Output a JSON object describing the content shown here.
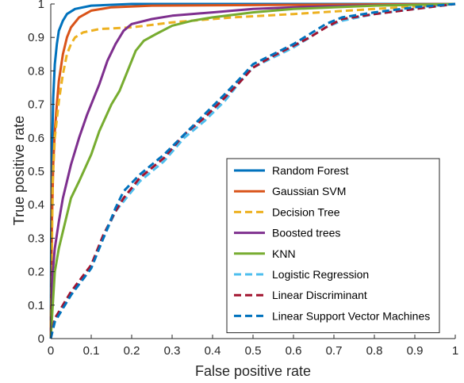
{
  "chart_data": {
    "type": "line",
    "title": "",
    "xlabel": "False positive rate",
    "ylabel": "True positive rate",
    "xlim": [
      0,
      1
    ],
    "ylim": [
      0,
      1
    ],
    "x_ticks": [
      "0",
      "0.1",
      "0.2",
      "0.3",
      "0.4",
      "0.5",
      "0.6",
      "0.7",
      "0.8",
      "0.9",
      "1"
    ],
    "y_ticks": [
      "0",
      "0.1",
      "0.2",
      "0.3",
      "0.4",
      "0.5",
      "0.6",
      "0.7",
      "0.8",
      "0.9",
      "1"
    ],
    "grid": false,
    "legend_position": "bottom-right",
    "series": [
      {
        "name": "Random Forest",
        "color": "#0072BD",
        "style": "solid",
        "points": [
          [
            0,
            0
          ],
          [
            0.001,
            0.3
          ],
          [
            0.003,
            0.55
          ],
          [
            0.006,
            0.72
          ],
          [
            0.01,
            0.82
          ],
          [
            0.015,
            0.88
          ],
          [
            0.02,
            0.92
          ],
          [
            0.03,
            0.95
          ],
          [
            0.04,
            0.97
          ],
          [
            0.06,
            0.985
          ],
          [
            0.1,
            0.995
          ],
          [
            0.2,
            1
          ],
          [
            1,
            1
          ]
        ]
      },
      {
        "name": "Gaussian SVM",
        "color": "#D95319",
        "style": "solid",
        "points": [
          [
            0,
            0
          ],
          [
            0.003,
            0.35
          ],
          [
            0.006,
            0.52
          ],
          [
            0.01,
            0.62
          ],
          [
            0.015,
            0.7
          ],
          [
            0.02,
            0.77
          ],
          [
            0.03,
            0.85
          ],
          [
            0.04,
            0.9
          ],
          [
            0.05,
            0.93
          ],
          [
            0.07,
            0.96
          ],
          [
            0.1,
            0.98
          ],
          [
            0.15,
            0.99
          ],
          [
            0.25,
            0.995
          ],
          [
            1,
            1
          ]
        ]
      },
      {
        "name": "Decision Tree",
        "color": "#EDB120",
        "style": "dashed",
        "points": [
          [
            0,
            0
          ],
          [
            0.005,
            0.47
          ],
          [
            0.01,
            0.6
          ],
          [
            0.02,
            0.71
          ],
          [
            0.03,
            0.79
          ],
          [
            0.04,
            0.85
          ],
          [
            0.05,
            0.88
          ],
          [
            0.06,
            0.9
          ],
          [
            0.08,
            0.915
          ],
          [
            0.12,
            0.925
          ],
          [
            0.2,
            0.93
          ],
          [
            0.3,
            0.945
          ],
          [
            0.45,
            0.96
          ],
          [
            0.6,
            0.97
          ],
          [
            0.8,
            0.985
          ],
          [
            1,
            1
          ]
        ]
      },
      {
        "name": "Boosted trees",
        "color": "#7E2F8E",
        "style": "solid",
        "points": [
          [
            0,
            0
          ],
          [
            0.005,
            0.2
          ],
          [
            0.01,
            0.27
          ],
          [
            0.02,
            0.35
          ],
          [
            0.03,
            0.42
          ],
          [
            0.05,
            0.52
          ],
          [
            0.07,
            0.6
          ],
          [
            0.09,
            0.67
          ],
          [
            0.12,
            0.76
          ],
          [
            0.14,
            0.83
          ],
          [
            0.16,
            0.88
          ],
          [
            0.18,
            0.92
          ],
          [
            0.2,
            0.94
          ],
          [
            0.25,
            0.955
          ],
          [
            0.3,
            0.965
          ],
          [
            0.4,
            0.975
          ],
          [
            0.5,
            0.985
          ],
          [
            0.6,
            0.99
          ],
          [
            0.75,
            0.995
          ],
          [
            1,
            1
          ]
        ]
      },
      {
        "name": "KNN",
        "color": "#77AC30",
        "style": "solid",
        "points": [
          [
            0,
            0
          ],
          [
            0.005,
            0.1
          ],
          [
            0.01,
            0.2
          ],
          [
            0.02,
            0.27
          ],
          [
            0.03,
            0.32
          ],
          [
            0.05,
            0.42
          ],
          [
            0.07,
            0.47
          ],
          [
            0.1,
            0.55
          ],
          [
            0.12,
            0.62
          ],
          [
            0.15,
            0.7
          ],
          [
            0.17,
            0.74
          ],
          [
            0.19,
            0.8
          ],
          [
            0.21,
            0.86
          ],
          [
            0.23,
            0.89
          ],
          [
            0.26,
            0.91
          ],
          [
            0.3,
            0.935
          ],
          [
            0.35,
            0.95
          ],
          [
            0.4,
            0.96
          ],
          [
            0.5,
            0.975
          ],
          [
            0.6,
            0.985
          ],
          [
            0.8,
            0.995
          ],
          [
            1,
            1
          ]
        ]
      },
      {
        "name": "Logistic Regression",
        "color": "#4DBEEE",
        "style": "dashed",
        "points": [
          [
            0,
            0
          ],
          [
            0.01,
            0.06
          ],
          [
            0.05,
            0.13
          ],
          [
            0.1,
            0.22
          ],
          [
            0.13,
            0.3
          ],
          [
            0.16,
            0.38
          ],
          [
            0.18,
            0.41
          ],
          [
            0.22,
            0.47
          ],
          [
            0.28,
            0.53
          ],
          [
            0.33,
            0.6
          ],
          [
            0.38,
            0.65
          ],
          [
            0.43,
            0.71
          ],
          [
            0.47,
            0.77
          ],
          [
            0.5,
            0.81
          ],
          [
            0.55,
            0.84
          ],
          [
            0.6,
            0.87
          ],
          [
            0.64,
            0.9
          ],
          [
            0.68,
            0.93
          ],
          [
            0.72,
            0.95
          ],
          [
            0.8,
            0.97
          ],
          [
            0.9,
            0.985
          ],
          [
            1,
            1
          ]
        ]
      },
      {
        "name": "Linear Discriminant",
        "color": "#A2142F",
        "style": "dashed",
        "points": [
          [
            0,
            0
          ],
          [
            0.01,
            0.06
          ],
          [
            0.05,
            0.14
          ],
          [
            0.1,
            0.22
          ],
          [
            0.13,
            0.31
          ],
          [
            0.16,
            0.38
          ],
          [
            0.18,
            0.42
          ],
          [
            0.22,
            0.48
          ],
          [
            0.28,
            0.54
          ],
          [
            0.33,
            0.61
          ],
          [
            0.38,
            0.66
          ],
          [
            0.43,
            0.72
          ],
          [
            0.47,
            0.77
          ],
          [
            0.5,
            0.81
          ],
          [
            0.55,
            0.845
          ],
          [
            0.6,
            0.875
          ],
          [
            0.64,
            0.9
          ],
          [
            0.68,
            0.93
          ],
          [
            0.72,
            0.955
          ],
          [
            0.8,
            0.97
          ],
          [
            0.9,
            0.985
          ],
          [
            1,
            1
          ]
        ]
      },
      {
        "name": "Linear Support Vector Machines",
        "color": "#0072BD",
        "style": "dashed",
        "points": [
          [
            0,
            0
          ],
          [
            0.01,
            0.05
          ],
          [
            0.05,
            0.13
          ],
          [
            0.1,
            0.21
          ],
          [
            0.13,
            0.3
          ],
          [
            0.16,
            0.39
          ],
          [
            0.18,
            0.44
          ],
          [
            0.22,
            0.49
          ],
          [
            0.28,
            0.55
          ],
          [
            0.33,
            0.61
          ],
          [
            0.38,
            0.67
          ],
          [
            0.43,
            0.73
          ],
          [
            0.47,
            0.78
          ],
          [
            0.5,
            0.82
          ],
          [
            0.55,
            0.85
          ],
          [
            0.6,
            0.88
          ],
          [
            0.64,
            0.91
          ],
          [
            0.68,
            0.94
          ],
          [
            0.72,
            0.96
          ],
          [
            0.8,
            0.975
          ],
          [
            0.9,
            0.99
          ],
          [
            1,
            1
          ]
        ]
      }
    ]
  }
}
